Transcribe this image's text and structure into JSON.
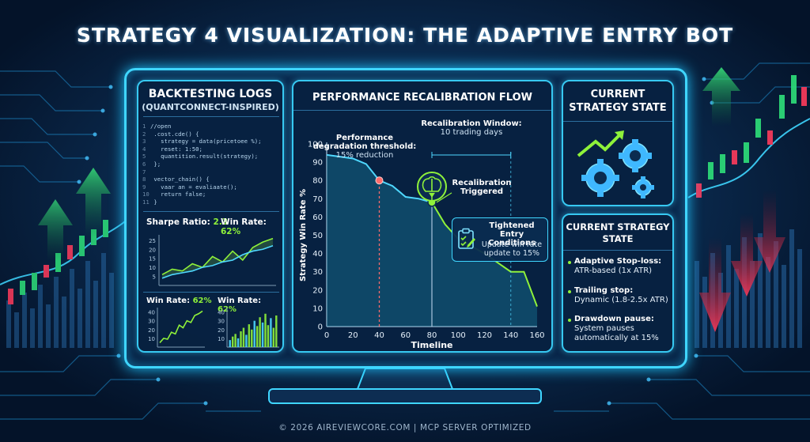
{
  "title": "STRATEGY 4 VISUALIZATION: THE ADAPTIVE ENTRY BOT",
  "colors": {
    "accent": "#3fd6ff",
    "positive": "#8ff23a",
    "negative": "#ff3b5c",
    "threshold": "#ff6b6b"
  },
  "logs_panel": {
    "title": "BACKTESTING LOGS",
    "subtitle": "(QUANTCONNECT-INSPIRED)",
    "code_lines": [
      {
        "n": "1",
        "t": "//open"
      },
      {
        "n": "2",
        "t": " .cost.cde() {"
      },
      {
        "n": "3",
        "t": "   strategy = data(pricetoee %);"
      },
      {
        "n": "4",
        "t": "   reset: 1:50;"
      },
      {
        "n": "5",
        "t": "   quantition.result(strategy);"
      },
      {
        "n": "6",
        "t": " };"
      },
      {
        "n": "7",
        "t": ""
      },
      {
        "n": "8",
        "t": " vector_chain() {"
      },
      {
        "n": "9",
        "t": "   vaar an = evaliaate();"
      },
      {
        "n": "10",
        "t": "   return false;"
      },
      {
        "n": "11",
        "t": " }"
      }
    ],
    "sharpe_label": "Sharpe Ratio:",
    "sharpe_value": "2.3",
    "winrate_label": "Win Rate:",
    "winrate_value": "62%",
    "mini_left_label": "Win Rate:",
    "mini_left_value": "62%",
    "mini_right_label": "Win Rate:",
    "mini_right_value": "62%"
  },
  "flow_panel": {
    "title": "PERFORMANCE RECALIBRATION FLOW",
    "threshold_label": "Performance\ndegradation threshold:",
    "threshold_value": "15% reduction",
    "window_label": "Recalibration Window:",
    "window_value": "10 trading days",
    "triggered_label": "Recalibration\nTriggered",
    "tightened_title": "Tightened Entry\nConditions",
    "tightened_desc": "Update win rate\nupdate to 15%"
  },
  "state_panel": {
    "top_title": "CURRENT\nSTRATEGY STATE",
    "bottom_title": "CURRENT STRATEGY\nSTATE",
    "items": [
      {
        "label": "Adaptive Stop-loss:",
        "value": "ATR-based (1x ATR)"
      },
      {
        "label": "Trailing stop:",
        "value": "Dynamic (1.8-2.5x ATR)"
      },
      {
        "label": "Drawdown pause:",
        "value": "System pauses automatically at 15%"
      }
    ]
  },
  "footer": "© 2026 AIREVIEWCORE.COM  |  MCP SERVER OPTIMIZED",
  "chart_data": [
    {
      "type": "line",
      "title": "",
      "xlabel": "Timeline",
      "ylabel": "Strategy Win Rate %",
      "xlim": [
        0,
        160
      ],
      "ylim": [
        0,
        100
      ],
      "xticks": [
        0,
        20,
        40,
        60,
        80,
        100,
        120,
        140,
        160
      ],
      "yticks": [
        0,
        10,
        20,
        30,
        40,
        50,
        60,
        70,
        80,
        90,
        100
      ],
      "series": [
        {
          "x": [
            0,
            10,
            20,
            30,
            40,
            50,
            60,
            70,
            80,
            90,
            100,
            120,
            140,
            150,
            160
          ],
          "y": [
            94,
            93,
            92,
            89,
            80,
            77,
            71,
            70,
            68,
            56,
            48,
            40,
            30,
            30,
            11
          ]
        }
      ],
      "markers": [
        {
          "x": 40,
          "y": 80
        },
        {
          "x": 80,
          "y": 68
        }
      ],
      "annotations": [
        "Recalibration Window: 10 trading days",
        "Performance degradation threshold: 15% reduction"
      ]
    },
    {
      "type": "line",
      "yticks": [
        5,
        10,
        15,
        20,
        25
      ],
      "ylim": [
        0,
        28
      ],
      "series": [
        {
          "values": [
            6,
            9,
            8,
            12,
            10,
            16,
            13,
            19,
            14,
            21,
            24,
            26
          ]
        },
        {
          "values": [
            4,
            6,
            7,
            8,
            10,
            11,
            13,
            14,
            17,
            19,
            20,
            22
          ]
        }
      ]
    },
    {
      "type": "line",
      "yticks": [
        10,
        20,
        30,
        40
      ],
      "ylim": [
        0,
        45
      ],
      "series": [
        {
          "values": [
            5,
            10,
            9,
            17,
            15,
            25,
            22,
            30,
            28,
            36,
            38,
            41
          ]
        }
      ]
    },
    {
      "type": "bar",
      "yticks": [
        10,
        20,
        30,
        40
      ],
      "ylim": [
        0,
        45
      ],
      "values": [
        8,
        12,
        15,
        10,
        18,
        22,
        14,
        26,
        20,
        30,
        24,
        34,
        28,
        38,
        25,
        33,
        22,
        36
      ]
    }
  ]
}
